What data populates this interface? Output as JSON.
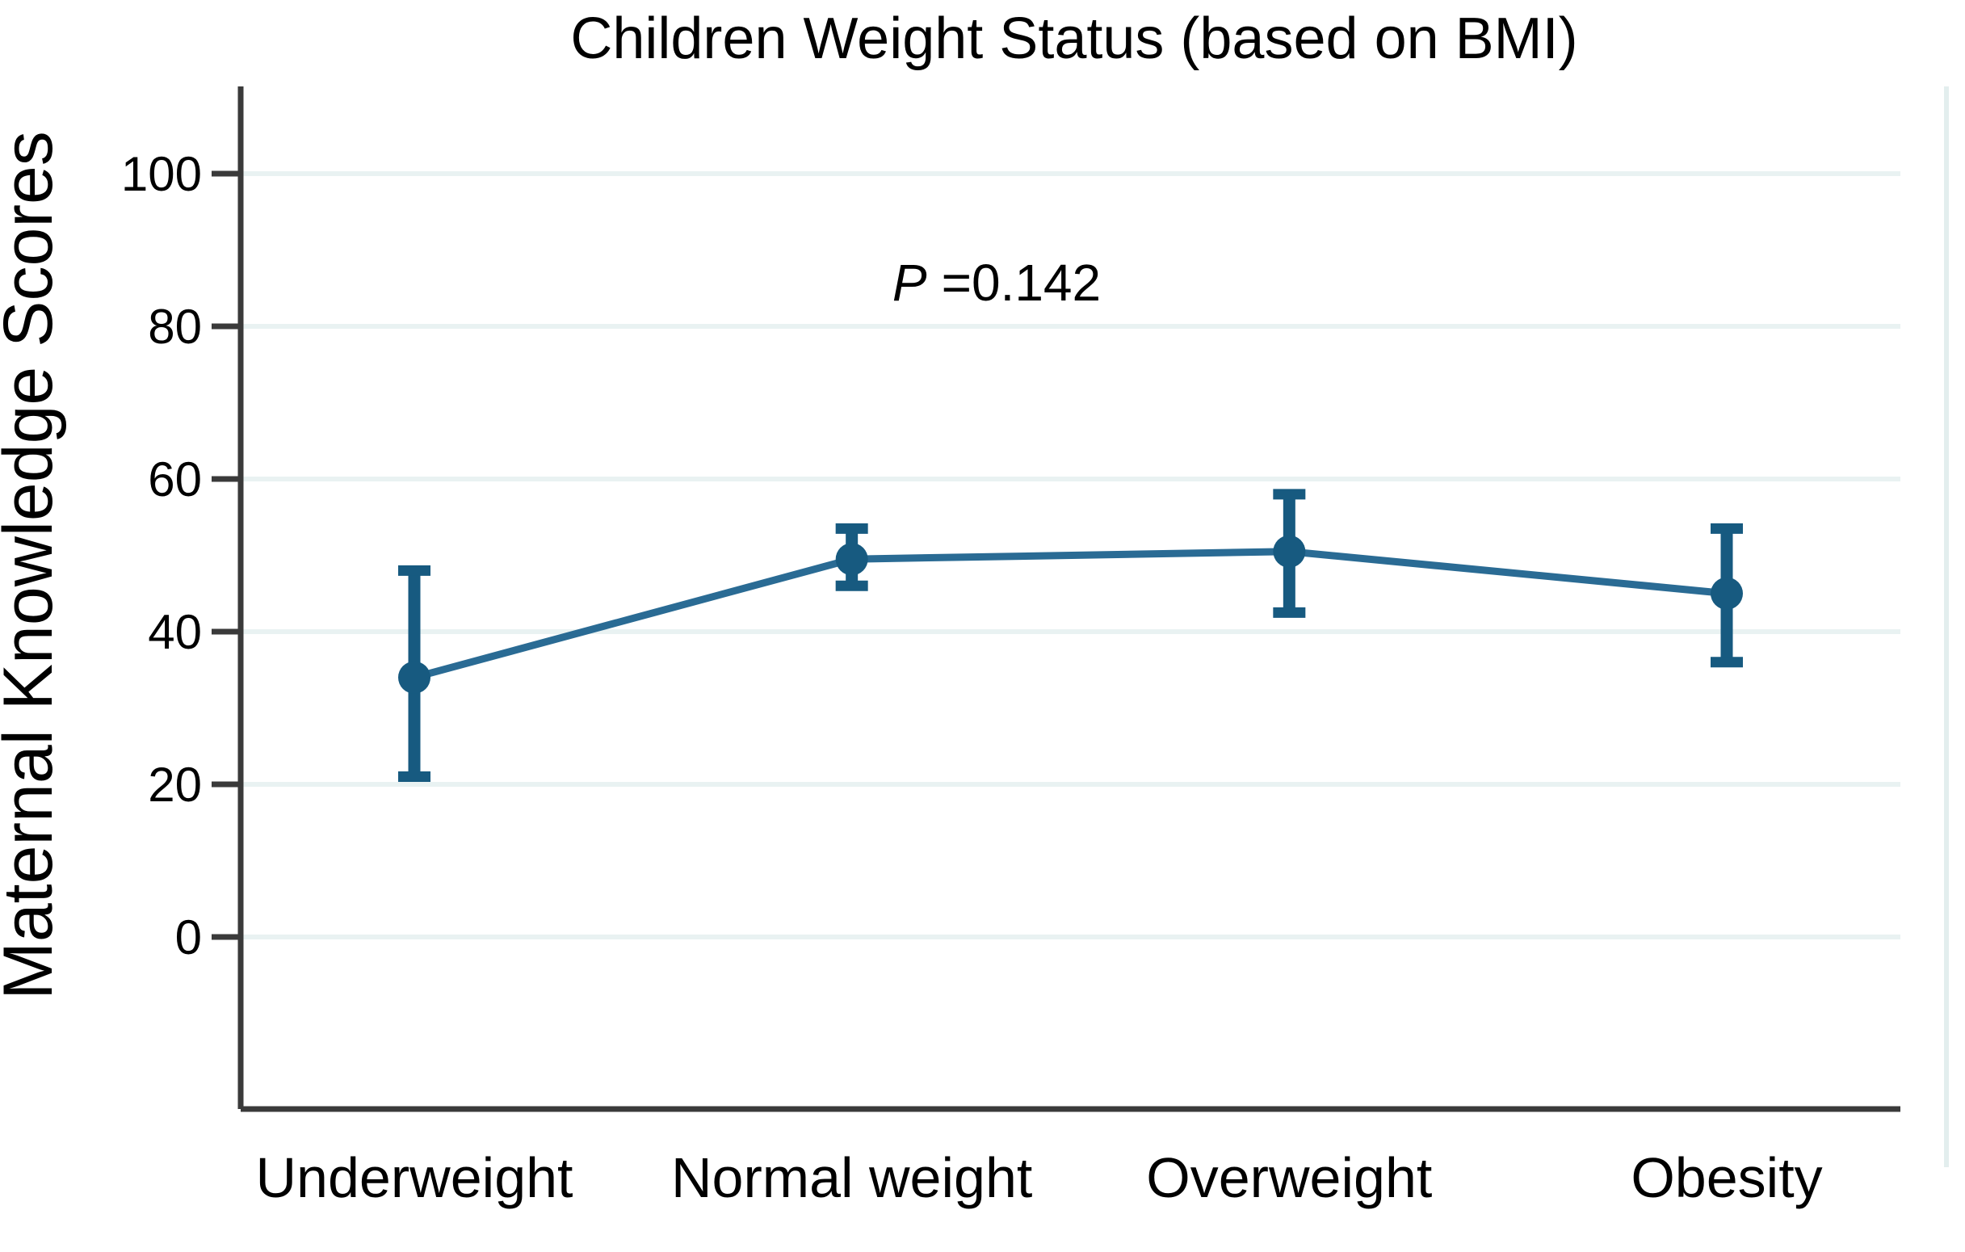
{
  "chart_data": {
    "type": "line",
    "title": "Children Weight Status (based on BMI)",
    "ylabel": "Maternal Knowledge Scores",
    "xlabel": "",
    "categories": [
      "Underweight",
      "Normal weight",
      "Overweight",
      "Obesity"
    ],
    "series": [
      {
        "values": [
          34,
          49.5,
          50.5,
          45
        ],
        "ci_low": [
          21,
          46,
          42.5,
          36
        ],
        "ci_high": [
          48,
          53.5,
          58,
          53.5
        ]
      }
    ],
    "error_bars": true,
    "p_annotation": {
      "prefix": "P",
      "equals_value": "=0.142",
      "full_text": "P =0.142",
      "y": 85
    },
    "yticks": [
      0,
      20,
      40,
      60,
      80,
      100
    ],
    "ylim_drawn": [
      -22.5,
      111.5
    ],
    "grid": "horizontal",
    "legend": "none",
    "colors": {
      "marker": "#175a80",
      "line": "#2a6b94",
      "gridline": "#e9f2f2",
      "axis": "#3a3a3a",
      "text": "#000000",
      "plot_right_border": "#e3eeee"
    }
  }
}
